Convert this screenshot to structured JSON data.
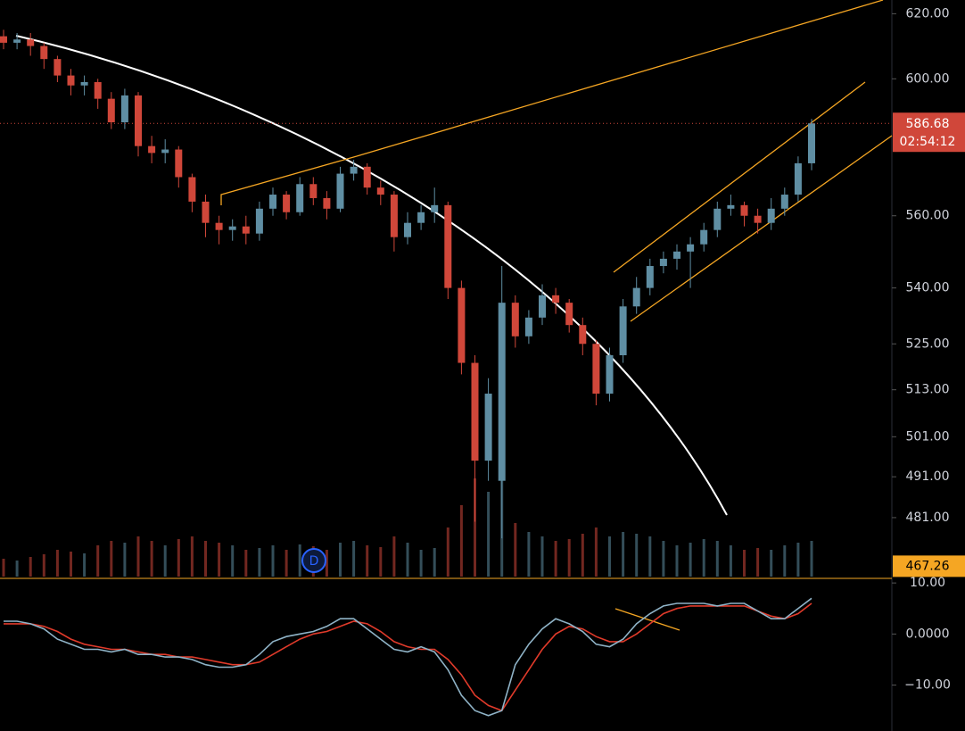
{
  "chart_data": {
    "type": "candlestick",
    "log_scale": true,
    "ylim": [
      466.5,
      624.3
    ],
    "yticks": [
      {
        "value": 620,
        "label": "620.00"
      },
      {
        "value": 600,
        "label": "600.00"
      },
      {
        "value": 560,
        "label": "560.00"
      },
      {
        "value": 540,
        "label": "540.00"
      },
      {
        "value": 525,
        "label": "525.00"
      },
      {
        "value": 513,
        "label": "513.00"
      },
      {
        "value": 501,
        "label": "501.00"
      },
      {
        "value": 491,
        "label": "491.00"
      },
      {
        "value": 481,
        "label": "481.00"
      }
    ],
    "up_color": "#5f8ea3",
    "down_color": "#d0473a",
    "open": [
      613,
      611,
      612,
      610,
      606,
      601,
      598,
      599,
      594,
      587,
      595,
      580,
      578,
      579,
      571,
      564,
      558,
      556,
      557,
      555,
      562,
      566,
      561,
      569,
      565,
      562,
      572,
      574,
      568,
      566,
      554,
      558,
      561,
      563,
      540,
      520,
      495,
      490,
      536,
      527,
      532,
      538,
      536,
      530,
      525,
      512,
      522,
      535,
      540,
      546,
      548,
      550,
      552,
      556,
      562,
      563,
      560,
      558,
      562,
      566,
      575
    ],
    "high": [
      615,
      614,
      614,
      611,
      607,
      603,
      601,
      600,
      596,
      597,
      596,
      583,
      582,
      580,
      572,
      566,
      560,
      559,
      560,
      564,
      568,
      567,
      571,
      571,
      567,
      574,
      576,
      575,
      570,
      567,
      561,
      563,
      568,
      564,
      542,
      522,
      516,
      546,
      538,
      534,
      541,
      540,
      537,
      532,
      526,
      524,
      537,
      543,
      548,
      550,
      552,
      554,
      558,
      564,
      566,
      564,
      562,
      565,
      568,
      577,
      588
    ],
    "low": [
      609,
      609,
      607,
      603,
      599,
      595,
      595,
      591,
      585,
      585,
      577,
      575,
      575,
      568,
      561,
      554,
      552,
      553,
      552,
      553,
      560,
      559,
      560,
      563,
      559,
      561,
      570,
      566,
      563,
      550,
      552,
      556,
      558,
      537,
      517,
      480,
      490,
      476,
      524,
      525,
      530,
      533,
      528,
      522,
      509,
      510,
      520,
      533,
      538,
      544,
      545,
      540,
      550,
      554,
      560,
      557,
      555,
      556,
      560,
      564,
      573
    ],
    "close": [
      611,
      612,
      610,
      606,
      601,
      598,
      599,
      594,
      587,
      595,
      580,
      578,
      579,
      571,
      564,
      558,
      556,
      557,
      555,
      562,
      566,
      561,
      569,
      565,
      562,
      572,
      574,
      568,
      566,
      554,
      558,
      561,
      563,
      540,
      520,
      495,
      512,
      536,
      527,
      532,
      538,
      536,
      530,
      525,
      512,
      522,
      535,
      540,
      546,
      548,
      550,
      552,
      556,
      562,
      563,
      560,
      558,
      562,
      566,
      575,
      586.68
    ],
    "volume": [
      20,
      18,
      22,
      25,
      30,
      28,
      26,
      35,
      40,
      38,
      45,
      40,
      35,
      42,
      45,
      40,
      38,
      35,
      30,
      32,
      35,
      30,
      36,
      34,
      30,
      38,
      40,
      35,
      33,
      45,
      38,
      30,
      32,
      55,
      80,
      110,
      95,
      130,
      60,
      50,
      45,
      40,
      42,
      48,
      55,
      45,
      50,
      48,
      45,
      40,
      35,
      38,
      42,
      40,
      35,
      30,
      32,
      30,
      35,
      38,
      40
    ],
    "last_price": {
      "value": 586.68,
      "label": "586.68",
      "color": "#d0473a"
    },
    "countdown": "02:54:12",
    "marker": {
      "value": 467.26,
      "label": "467.26",
      "color": "#f5a623"
    },
    "event_label": "D",
    "macd": {
      "ylim": [
        -19,
        10.9
      ],
      "yticks": [
        {
          "value": 10,
          "label": "10.00"
        },
        {
          "value": 0,
          "label": "0.0000"
        },
        {
          "value": -10,
          "label": "−10.00"
        }
      ],
      "macd_color": "#8fb3c7",
      "signal_color": "#e03a2a",
      "macd": [
        2.5,
        2.5,
        2,
        1,
        -1,
        -2,
        -3,
        -3,
        -3.5,
        -3,
        -4,
        -4,
        -4.5,
        -4.5,
        -5,
        -6,
        -6.5,
        -6.5,
        -6,
        -4,
        -1.5,
        -0.5,
        0,
        0.5,
        1.5,
        3,
        3,
        1,
        -1,
        -3,
        -3.5,
        -2.5,
        -3.5,
        -7,
        -12,
        -15,
        -16,
        -15,
        -6,
        -2,
        1,
        3,
        2,
        0.5,
        -2,
        -2.5,
        -1,
        2,
        4,
        5.5,
        6,
        6,
        6,
        5.5,
        6,
        6,
        4.5,
        3,
        3,
        5,
        7
      ],
      "signal": [
        2,
        2,
        2,
        1.5,
        0.5,
        -1,
        -2,
        -2.5,
        -3,
        -3,
        -3.5,
        -4,
        -4,
        -4.5,
        -4.5,
        -5,
        -5.5,
        -6,
        -6,
        -5.5,
        -4,
        -2.5,
        -1,
        0,
        0.5,
        1.5,
        2.5,
        2,
        0.5,
        -1.5,
        -2.5,
        -3,
        -3,
        -5,
        -8,
        -12,
        -14,
        -15,
        -11,
        -7,
        -3,
        0,
        1.5,
        1,
        -0.5,
        -1.5,
        -1.5,
        0,
        2,
        4,
        5,
        5.5,
        5.5,
        5.5,
        5.5,
        5.5,
        4.5,
        3.5,
        3,
        4,
        6
      ]
    }
  }
}
